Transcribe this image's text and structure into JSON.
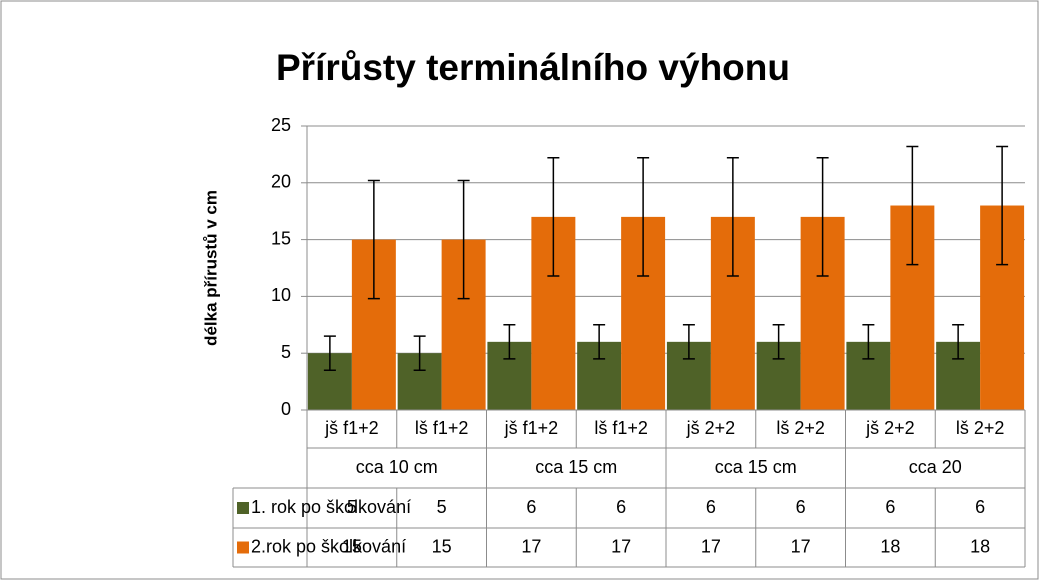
{
  "chart_data": {
    "type": "bar",
    "title": "Přírůsty terminálního výhonu",
    "y_label": "délka přírustů v cm",
    "category_groups": [
      {
        "name": "cca 10 cm",
        "categories": [
          "jš f1+2",
          "lš f1+2"
        ]
      },
      {
        "name": "cca 15 cm",
        "categories": [
          "jš f1+2",
          "lš f1+2"
        ]
      },
      {
        "name": "cca 15 cm",
        "categories": [
          "jš 2+2",
          "lš 2+2"
        ]
      },
      {
        "name": "cca 20",
        "categories": [
          "jš 2+2",
          "lš 2+2"
        ]
      }
    ],
    "series": [
      {
        "name": "1. rok po školkování",
        "color": "#4f6228",
        "values": [
          5,
          5,
          6,
          6,
          6,
          6,
          6,
          6
        ],
        "errors": [
          1.5,
          1.5,
          1.5,
          1.5,
          1.5,
          1.5,
          1.5,
          1.5
        ]
      },
      {
        "name": "2.rok po školkování",
        "color": "#e46c0a",
        "values": [
          15,
          15,
          17,
          17,
          17,
          17,
          18,
          18
        ],
        "errors": [
          5.2,
          5.2,
          5.2,
          5.2,
          5.2,
          5.2,
          5.2,
          5.2
        ]
      }
    ],
    "ylim": [
      0,
      25
    ],
    "yticks": [
      0,
      5,
      10,
      15,
      20,
      25
    ],
    "grid": true,
    "data_table": true
  }
}
